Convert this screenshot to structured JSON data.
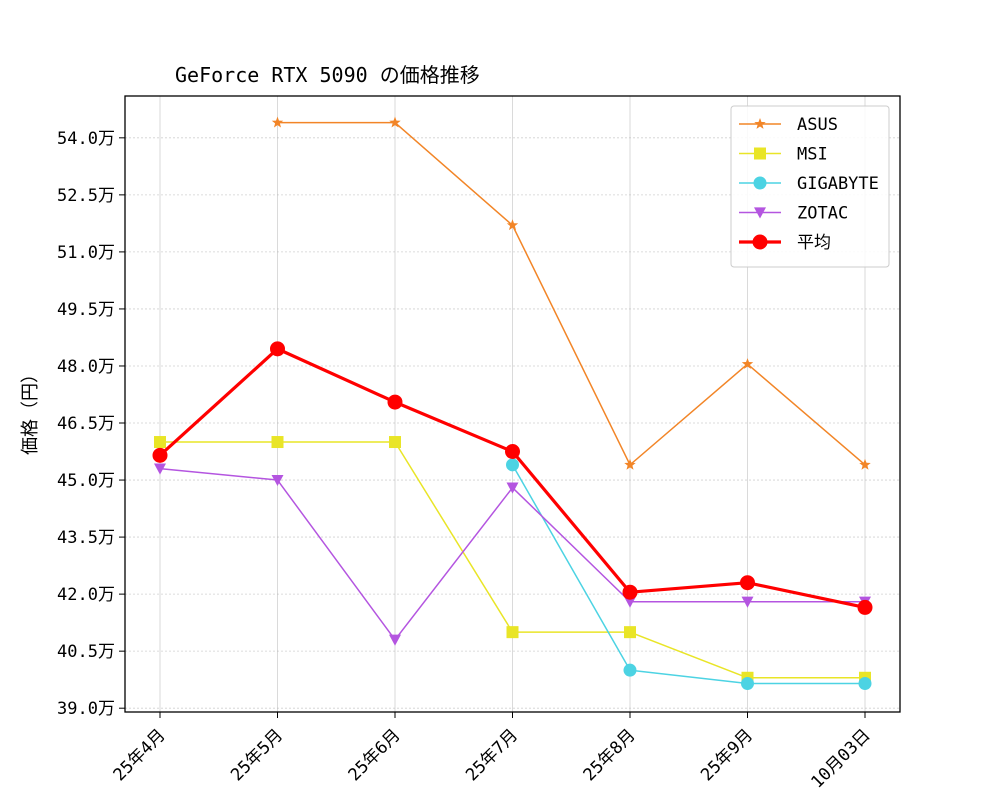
{
  "chart_data": {
    "type": "line",
    "title": "GeForce RTX 5090 の価格推移",
    "xlabel": "",
    "ylabel": "価格（円）",
    "categories": [
      "25年4月",
      "25年5月",
      "25年6月",
      "25年7月",
      "25年8月",
      "25年9月",
      "10月03日"
    ],
    "yticks": [
      39.0,
      40.5,
      42.0,
      43.5,
      45.0,
      46.5,
      48.0,
      49.5,
      51.0,
      52.5,
      54.0
    ],
    "ytick_labels": [
      "39.0万",
      "40.5万",
      "42.0万",
      "43.5万",
      "45.0万",
      "46.5万",
      "48.0万",
      "49.5万",
      "51.0万",
      "52.5万",
      "54.0万"
    ],
    "ylim": [
      38.9,
      55.1
    ],
    "y_unit": "万円",
    "grid": true,
    "legend_position": "top-right",
    "series": [
      {
        "name": "ASUS",
        "color": "#f28527",
        "marker": "star",
        "line_width": 1.5,
        "values": [
          null,
          54.4,
          54.4,
          51.7,
          45.4,
          48.05,
          45.4
        ]
      },
      {
        "name": "MSI",
        "color": "#e9e527",
        "marker": "square",
        "line_width": 1.5,
        "values": [
          46.0,
          46.0,
          46.0,
          41.0,
          41.0,
          39.8,
          39.8
        ]
      },
      {
        "name": "GIGABYTE",
        "color": "#4cd3e3",
        "marker": "circle",
        "line_width": 1.5,
        "values": [
          null,
          null,
          null,
          45.4,
          40.0,
          39.65,
          39.65
        ]
      },
      {
        "name": "ZOTAC",
        "color": "#b455e0",
        "marker": "triangle-down",
        "line_width": 1.5,
        "values": [
          45.3,
          45.0,
          40.8,
          44.8,
          41.8,
          41.8,
          41.8
        ]
      },
      {
        "name": "平均",
        "color": "#ff0000",
        "marker": "circle",
        "line_width": 3.2,
        "values": [
          45.65,
          48.45,
          47.05,
          45.75,
          42.05,
          42.3,
          41.65
        ]
      }
    ]
  }
}
